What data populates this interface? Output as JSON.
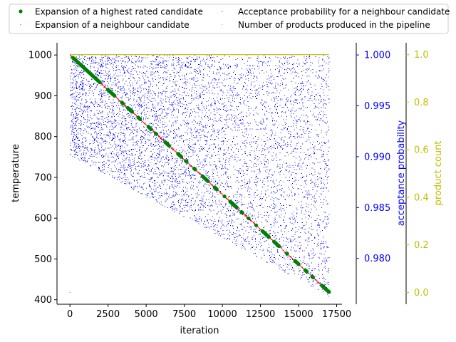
{
  "chart_data": {
    "type": "scatter",
    "title": "",
    "xlabel": "iteration",
    "xlim": [
      -850,
      17850
    ],
    "x_ticks": [
      0,
      2500,
      5000,
      7500,
      10000,
      12500,
      15000,
      17500
    ],
    "x_tick_labels": [
      "0",
      "2500",
      "5000",
      "7500",
      "10000",
      "12500",
      "15000",
      "17500"
    ],
    "axes": {
      "left": {
        "label": "temperature",
        "ylim": [
          389,
          1030
        ],
        "ticks": [
          400,
          500,
          600,
          700,
          800,
          900,
          1000
        ],
        "tick_labels": [
          "400",
          "500",
          "600",
          "700",
          "800",
          "900",
          "1000"
        ],
        "color": "#000000"
      },
      "right1": {
        "label": "acceptance probability",
        "ylim": [
          0.9755,
          1.0012
        ],
        "ticks": [
          0.98,
          0.985,
          0.99,
          0.995,
          1.0
        ],
        "tick_labels": [
          "0.980",
          "0.985",
          "0.990",
          "0.995",
          "1.000"
        ],
        "color": "#0000ff"
      },
      "right2": {
        "label": "product count",
        "ylim": [
          -0.05,
          1.05
        ],
        "ticks": [
          0.0,
          0.2,
          0.4,
          0.6,
          0.8,
          1.0
        ],
        "tick_labels": [
          "0.0",
          "0.2",
          "0.4",
          "0.6",
          "0.8",
          "1.0"
        ],
        "color": "#bfbf00"
      }
    },
    "legend": {
      "placement": "top",
      "columns": 2,
      "entries": [
        "Expansion of a highest rated candidate",
        "Expansion of a neighbour candidate",
        "Acceptance probability for a neighbour candidate",
        "Number of products produced in the pipeline"
      ]
    },
    "series": [
      {
        "name": "Expansion of a highest rated candidate",
        "axis": "left",
        "color": "#008000",
        "marker": "circle",
        "line": {
          "x": [
            0,
            17000
          ],
          "y": [
            1000,
            419
          ]
        },
        "x_range": [
          200,
          17000
        ],
        "approx_count": 400
      },
      {
        "name": "Expansion of a neighbour candidate",
        "axis": "left",
        "color": "#ff0000",
        "marker": "pixel",
        "line": {
          "x": [
            0,
            17000
          ],
          "y": [
            1000,
            419
          ]
        },
        "x_range": [
          0,
          17000
        ],
        "approx_count": 700
      },
      {
        "name": "Acceptance probability for a neighbour candidate",
        "axis": "right1",
        "color": "#0000ff",
        "marker": "pixel",
        "x_range": [
          0,
          17000
        ],
        "y_max": 1.0,
        "lower_bound": {
          "x": [
            0,
            700,
            17000
          ],
          "y": [
            0.99,
            0.9896,
            0.9763
          ]
        },
        "approx_count": 14000
      },
      {
        "name": "Number of products produced in the pipeline",
        "axis": "right2",
        "color": "#bfbf00",
        "marker": "pixel",
        "x": [
          0,
          17000
        ],
        "y": [
          1.0,
          1.0
        ],
        "outliers": [
          {
            "x": 0,
            "y": 0.0
          }
        ]
      }
    ]
  }
}
